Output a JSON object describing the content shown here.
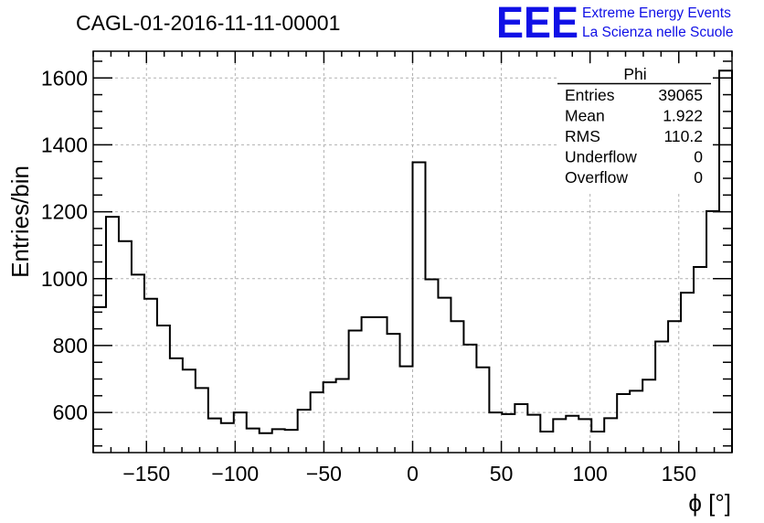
{
  "chart_data": {
    "type": "histogram",
    "title": "CAGL-01-2016-11-11-00001",
    "xlabel": "ϕ [°]",
    "ylabel": "Entries/bin",
    "xlim": [
      -180,
      180
    ],
    "ylim": [
      480,
      1680
    ],
    "bin_width": 7.2,
    "xticks": [
      -150,
      -100,
      -50,
      0,
      50,
      100,
      150
    ],
    "xtick_labels": [
      "−150",
      "−100",
      "−50",
      "0",
      "50",
      "100",
      "150"
    ],
    "yticks": [
      600,
      800,
      1000,
      1200,
      1400,
      1600
    ],
    "grid": true,
    "bin_edges_start": -180,
    "values": [
      915,
      1185,
      1112,
      1012,
      940,
      860,
      762,
      728,
      673,
      582,
      568,
      600,
      552,
      538,
      550,
      548,
      608,
      660,
      690,
      700,
      845,
      885,
      885,
      835,
      738,
      1348,
      998,
      943,
      873,
      803,
      735,
      600,
      595,
      625,
      593,
      543,
      580,
      590,
      580,
      543,
      583,
      655,
      665,
      698,
      812,
      873,
      958,
      1035,
      1202,
      1622
    ]
  },
  "stats_box": {
    "title": "Phi",
    "rows": [
      {
        "label": "Entries",
        "value": "39065"
      },
      {
        "label": "Mean",
        "value": "1.922"
      },
      {
        "label": "RMS",
        "value": "110.2"
      },
      {
        "label": "Underflow",
        "value": "0"
      },
      {
        "label": "Overflow",
        "value": "0"
      }
    ]
  },
  "logo": {
    "mark": "EEE",
    "line1": "Extreme Energy Events",
    "line2": "La Scienza nelle Scuole",
    "color": "#1010e6"
  }
}
